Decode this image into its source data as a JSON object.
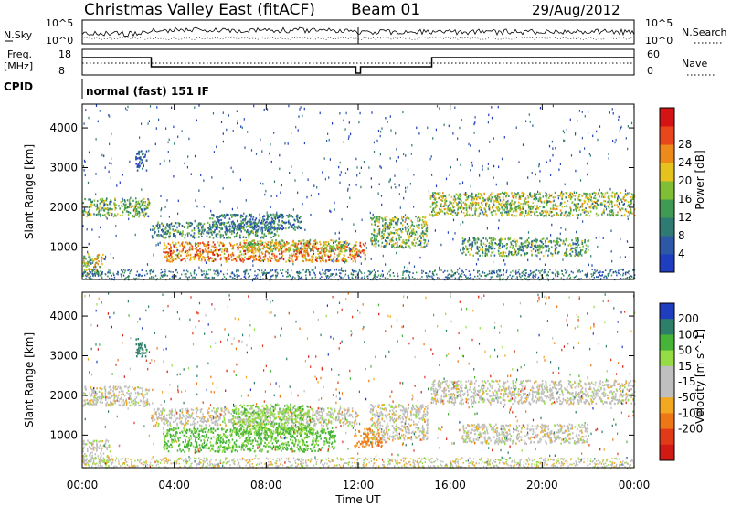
{
  "header": {
    "title": "Christmas Valley East (fitACF)",
    "beam": "Beam 01",
    "date": "29/Aug/2012"
  },
  "sky_panel": {
    "label": "N.Sky",
    "ytick_top": "10^5",
    "ytick_bottom": "10^0",
    "right_label": "N.Search",
    "right_tick_top": "10^5",
    "right_tick_bottom": "10^0"
  },
  "freq_panel": {
    "label_line1": "Freq.",
    "label_line2": "[MHz]",
    "ytick_top": "18",
    "ytick_bottom": "8",
    "right_label": "Nave",
    "right_tick_top": "60",
    "right_tick_bottom": "0"
  },
  "cpid_panel": {
    "label": "CPID",
    "text": "normal (fast) 151 IF"
  },
  "x_axis": {
    "ticks": [
      "00:00",
      "04:00",
      "08:00",
      "12:00",
      "16:00",
      "20:00",
      "00:00"
    ],
    "label": "Time UT"
  },
  "colors": {
    "power_scale": [
      "#1f3dbf",
      "#2d58a8",
      "#2f7b73",
      "#3f9a54",
      "#7fbe35",
      "#e6c21e",
      "#ee8a1a",
      "#e8471c",
      "#d41414"
    ],
    "velocity_scale": [
      "#1f3dbf",
      "#2d7f6a",
      "#47b338",
      "#96dd45",
      "#bfbfbf",
      "#bfbfbf",
      "#f2a820",
      "#ee7715",
      "#e03a18",
      "#d11a14"
    ]
  },
  "chart_data": [
    {
      "type": "heatmap",
      "title": "Power",
      "ylabel": "Slant Range [km]",
      "xlabel": "",
      "ylim": [
        180,
        4600
      ],
      "y_ticks": [
        1000,
        2000,
        3000,
        4000
      ],
      "colorbar": {
        "label": "Power [dB]",
        "ticks": [
          "4",
          "8",
          "12",
          "16",
          "20",
          "24",
          "28"
        ],
        "range": [
          0,
          32
        ]
      },
      "features": [
        {
          "t0": 0.0,
          "t1": 2.9,
          "r0": 1780,
          "r1": 2250,
          "power": 14
        },
        {
          "t0": 0.0,
          "t1": 0.9,
          "r0": 300,
          "r1": 850,
          "power": 17
        },
        {
          "t0": 3.0,
          "t1": 8.5,
          "r0": 1250,
          "r1": 1650,
          "power": 11
        },
        {
          "t0": 5.5,
          "t1": 9.5,
          "r0": 1450,
          "r1": 1850,
          "power": 8
        },
        {
          "t0": 3.5,
          "t1": 12.3,
          "r0": 650,
          "r1": 1150,
          "power": 23
        },
        {
          "t0": 7.0,
          "t1": 11.5,
          "r0": 900,
          "r1": 1200,
          "power": 18
        },
        {
          "t0": 12.5,
          "t1": 15.0,
          "r0": 1000,
          "r1": 1800,
          "power": 15
        },
        {
          "t0": 15.1,
          "t1": 24.0,
          "r0": 1800,
          "r1": 2400,
          "power": 16
        },
        {
          "t0": 16.5,
          "t1": 22.0,
          "r0": 800,
          "r1": 1250,
          "power": 12
        },
        {
          "t0": 2.3,
          "t1": 2.8,
          "r0": 2950,
          "r1": 3450,
          "power": 4
        }
      ]
    },
    {
      "type": "heatmap",
      "title": "Velocity",
      "ylabel": "Slant Range [km]",
      "xlabel": "Time UT",
      "ylim": [
        180,
        4600
      ],
      "y_ticks": [
        1000,
        2000,
        3000,
        4000
      ],
      "colorbar": {
        "label": "Velocity [m s^-1]",
        "ticks": [
          "200",
          "100",
          "50",
          "15",
          "-15",
          "-50",
          "-100",
          "-200"
        ],
        "range": [
          -250,
          250
        ]
      },
      "features": [
        {
          "t0": 0.0,
          "t1": 2.9,
          "r0": 1750,
          "r1": 2250,
          "velocity": 0
        },
        {
          "t0": 0.0,
          "t1": 1.2,
          "r0": 300,
          "r1": 900,
          "velocity": 0
        },
        {
          "t0": 3.0,
          "t1": 12.0,
          "r0": 1250,
          "r1": 1700,
          "velocity": 0
        },
        {
          "t0": 3.5,
          "t1": 11.0,
          "r0": 600,
          "r1": 1200,
          "velocity": 60
        },
        {
          "t0": 6.5,
          "t1": 10.0,
          "r0": 1050,
          "r1": 1800,
          "velocity": 45
        },
        {
          "t0": 11.8,
          "t1": 13.0,
          "r0": 700,
          "r1": 1200,
          "velocity": -60
        },
        {
          "t0": 12.5,
          "t1": 15.0,
          "r0": 900,
          "r1": 1800,
          "velocity": 0
        },
        {
          "t0": 15.1,
          "t1": 24.0,
          "r0": 1800,
          "r1": 2400,
          "velocity": 0
        },
        {
          "t0": 16.5,
          "t1": 22.0,
          "r0": 800,
          "r1": 1300,
          "velocity": 0
        },
        {
          "t0": 2.3,
          "t1": 2.8,
          "r0": 3000,
          "r1": 3450,
          "velocity": 150
        }
      ]
    }
  ]
}
